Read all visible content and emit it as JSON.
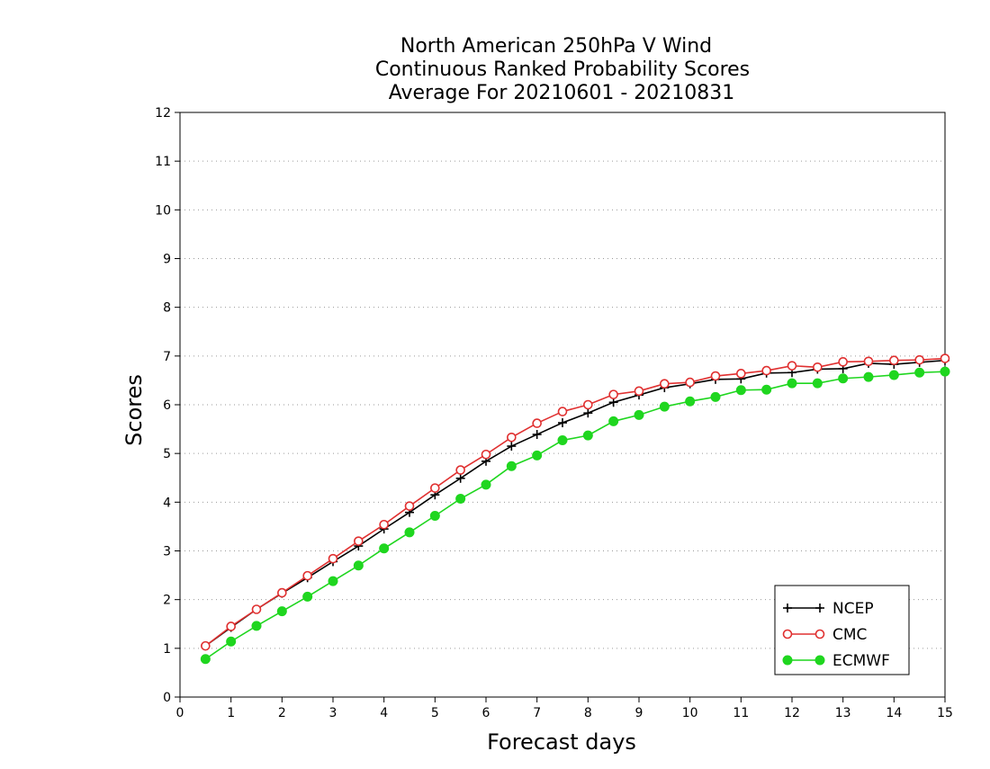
{
  "chart_data": {
    "type": "line",
    "title_lines": [
      "North American 250hPa V Wind",
      "Continuous Ranked Probability Scores",
      "Average For 20210601 - 20210831"
    ],
    "xlabel": "Forecast days",
    "ylabel": "Scores",
    "xlim": [
      0,
      15
    ],
    "ylim": [
      0,
      12
    ],
    "xticks": [
      "0",
      "1",
      "2",
      "3",
      "4",
      "5",
      "6",
      "7",
      "8",
      "9",
      "10",
      "11",
      "12",
      "13",
      "14",
      "15"
    ],
    "yticks": [
      "0",
      "1",
      "2",
      "3",
      "4",
      "5",
      "6",
      "7",
      "8",
      "9",
      "10",
      "11",
      "12"
    ],
    "grid": "horizontal-dotted",
    "legend_position": "bottom-right",
    "x": [
      0.5,
      1,
      1.5,
      2,
      2.5,
      3,
      3.5,
      4,
      4.5,
      5,
      5.5,
      6,
      6.5,
      7,
      7.5,
      8,
      8.5,
      9,
      9.5,
      10,
      10.5,
      11,
      11.5,
      12,
      12.5,
      13,
      13.5,
      14,
      14.5,
      15
    ],
    "series": [
      {
        "name": "NCEP",
        "color": "#000000",
        "marker": "plus",
        "values": [
          1.05,
          1.43,
          1.8,
          2.13,
          2.45,
          2.78,
          3.1,
          3.45,
          3.79,
          4.15,
          4.49,
          4.84,
          5.15,
          5.39,
          5.63,
          5.83,
          6.05,
          6.2,
          6.35,
          6.43,
          6.52,
          6.53,
          6.65,
          6.66,
          6.73,
          6.74,
          6.85,
          6.83,
          6.87,
          6.91
        ]
      },
      {
        "name": "CMC",
        "color": "#e03030",
        "marker": "open-circle",
        "values": [
          1.05,
          1.45,
          1.8,
          2.14,
          2.49,
          2.84,
          3.2,
          3.54,
          3.92,
          4.29,
          4.66,
          4.98,
          5.33,
          5.62,
          5.86,
          6.0,
          6.21,
          6.28,
          6.43,
          6.46,
          6.59,
          6.64,
          6.7,
          6.8,
          6.77,
          6.88,
          6.89,
          6.91,
          6.92,
          6.95
        ]
      },
      {
        "name": "ECMWF",
        "color": "#1fd61f",
        "marker": "filled-circle",
        "values": [
          0.78,
          1.14,
          1.46,
          1.76,
          2.06,
          2.38,
          2.7,
          3.05,
          3.38,
          3.72,
          4.07,
          4.36,
          4.74,
          4.96,
          5.27,
          5.37,
          5.66,
          5.79,
          5.96,
          6.07,
          6.16,
          6.3,
          6.31,
          6.44,
          6.44,
          6.54,
          6.57,
          6.61,
          6.66,
          6.68
        ]
      }
    ]
  }
}
